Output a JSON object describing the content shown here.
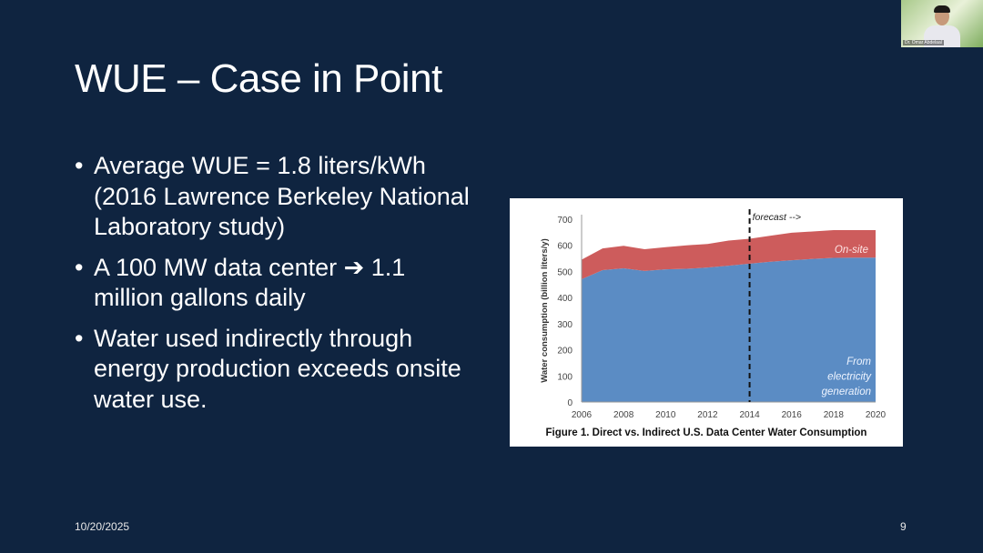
{
  "slide": {
    "title": "WUE – Case in Point",
    "bullets": [
      "Average WUE = 1.8 liters/kWh (2016 Lawrence Berkeley National Laboratory study)",
      "A 100 MW data center ➔ 1.1 million gallons daily",
      "Water used indirectly through energy production exceeds onsite water use."
    ],
    "date": "10/20/2025",
    "page_number": "9"
  },
  "webcam": {
    "name": "Dr. Omar Abdelaal"
  },
  "chart_data": {
    "type": "area",
    "stacked": true,
    "title": "Figure 1.   Direct vs. Indirect U.S. Data Center Water Consumption",
    "xlabel": "",
    "ylabel": "Water consumption (billion liters/y)",
    "xlim": [
      2006,
      2020
    ],
    "ylim": [
      0,
      700
    ],
    "x_ticks": [
      "2006",
      "2008",
      "2010",
      "2012",
      "2014",
      "2016",
      "2018",
      "2020"
    ],
    "y_ticks": [
      "0",
      "100",
      "200",
      "300",
      "400",
      "500",
      "600",
      "700"
    ],
    "x": [
      2006,
      2007,
      2008,
      2009,
      2010,
      2011,
      2012,
      2013,
      2014,
      2015,
      2016,
      2017,
      2018,
      2019,
      2020
    ],
    "series": [
      {
        "name": "From electricity generation",
        "label_lines": [
          "From",
          "electricity",
          "generation"
        ],
        "color": "#5b8cc4",
        "values": [
          470,
          505,
          512,
          502,
          508,
          510,
          515,
          522,
          530,
          537,
          543,
          548,
          552,
          553,
          553
        ]
      },
      {
        "name": "On-site",
        "label_lines": [
          "On-site"
        ],
        "color": "#cd5c5c",
        "values": [
          75,
          83,
          86,
          83,
          85,
          90,
          90,
          96,
          95,
          100,
          105,
          105,
          106,
          105,
          105
        ]
      }
    ],
    "annotations": [
      {
        "text": "forecast -->",
        "x": 2014,
        "style": "dashed vertical line"
      }
    ],
    "grid": false
  }
}
